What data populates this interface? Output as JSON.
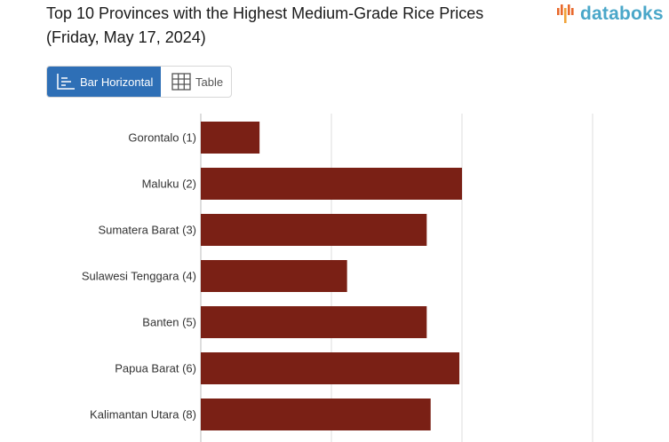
{
  "header": {
    "title_line1": "Top 10 Provinces with the Highest Medium-Grade Rice Prices",
    "title_line2": "(Friday, May 17, 2024)"
  },
  "brand": {
    "name": "databoks",
    "color": "#4aa7c9",
    "mark_colors": [
      "#e8692c",
      "#f0a33a"
    ]
  },
  "view_tabs": [
    {
      "label": "Bar Horizontal",
      "icon": "bar-chart-icon",
      "active": true
    },
    {
      "label": "Table",
      "icon": "table-icon",
      "active": false
    }
  ],
  "colors": {
    "accent": "#2e6fb6",
    "bar": "#7a2015",
    "grid": "#dddddd"
  },
  "chart_data": {
    "type": "bar",
    "orientation": "horizontal",
    "categories": [
      "Gorontalo (1)",
      "Maluku (2)",
      "Sumatera Barat (3)",
      "Sulawesi Tenggara (4)",
      "Banten (5)",
      "Papua Barat (6)",
      "Kalimantan Utara (8)"
    ],
    "values": [
      0.45,
      2.0,
      1.73,
      1.12,
      1.73,
      1.98,
      1.76
    ],
    "xlim": [
      0,
      3
    ],
    "grid": true,
    "xlabel": "",
    "ylabel": ""
  }
}
